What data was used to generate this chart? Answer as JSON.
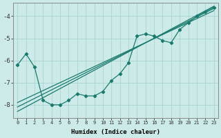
{
  "xlabel": "Humidex (Indice chaleur)",
  "bg_color": "#cceae8",
  "grid_color": "#aad4d0",
  "line_color": "#1a7a6e",
  "xlim": [
    -0.5,
    23.5
  ],
  "ylim": [
    -8.6,
    -3.4
  ],
  "yticks": [
    -8,
    -7,
    -6,
    -5,
    -4
  ],
  "xticks": [
    0,
    1,
    2,
    3,
    4,
    5,
    6,
    7,
    8,
    9,
    10,
    11,
    12,
    13,
    14,
    15,
    16,
    17,
    18,
    19,
    20,
    21,
    22,
    23
  ],
  "zigzag": {
    "x": [
      0,
      1,
      2,
      3,
      4,
      5,
      6,
      7,
      8,
      9,
      10,
      11,
      12,
      13,
      14,
      15,
      16,
      17,
      18,
      19,
      20,
      21,
      22,
      23
    ],
    "y": [
      -6.2,
      -5.7,
      -6.3,
      -7.8,
      -8.0,
      -8.0,
      -7.8,
      -7.5,
      -7.6,
      -7.6,
      -7.4,
      -6.9,
      -6.6,
      -6.1,
      -4.9,
      -4.8,
      -4.9,
      -5.1,
      -5.2,
      -4.6,
      -4.3,
      -4.0,
      -3.8,
      -3.6
    ]
  },
  "straight_lines": [
    {
      "x": [
        0,
        23
      ],
      "y": [
        -8.3,
        -3.55
      ]
    },
    {
      "x": [
        0,
        23
      ],
      "y": [
        -8.1,
        -3.65
      ]
    },
    {
      "x": [
        0,
        23
      ],
      "y": [
        -7.9,
        -3.75
      ]
    }
  ]
}
